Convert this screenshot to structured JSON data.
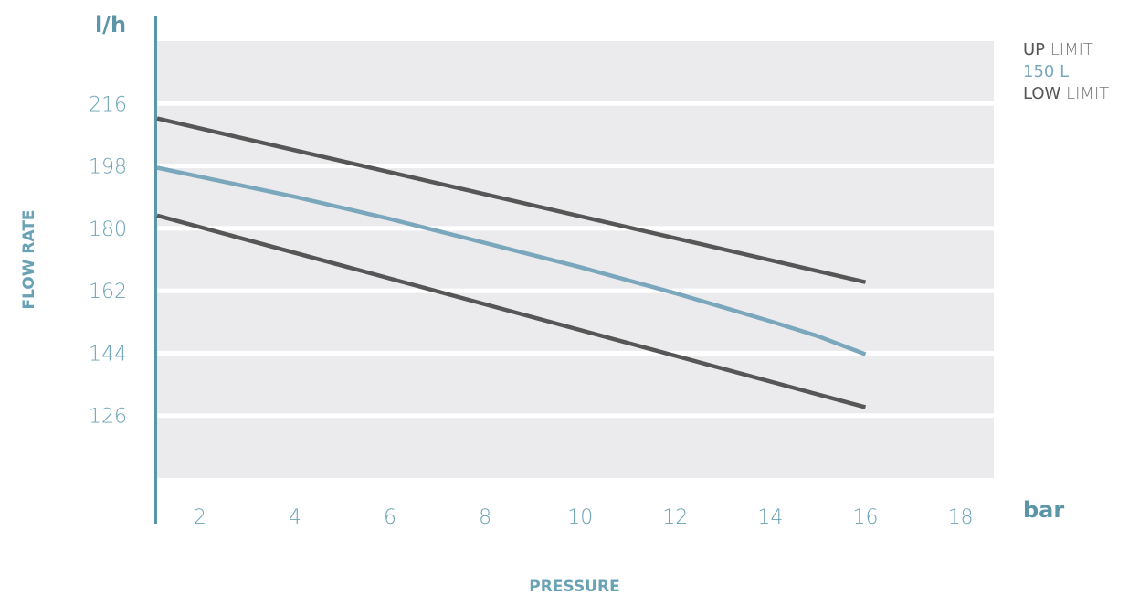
{
  "chart_data": {
    "type": "line",
    "title": "",
    "xlabel": "PRESSURE",
    "ylabel": "FLOW RATE",
    "x_unit": "bar",
    "y_unit": "l/h",
    "xlim": [
      1.1,
      18.7
    ],
    "ylim": [
      108,
      234
    ],
    "x_ticks": [
      "2",
      "4",
      "6",
      "8",
      "10",
      "12",
      "14",
      "16",
      "18"
    ],
    "y_ticks": [
      "216",
      "198",
      "180",
      "162",
      "144",
      "126"
    ],
    "grid": true,
    "legend_position": "top-right",
    "series": [
      {
        "name_main": "UP",
        "name_rest": " LIMIT",
        "color": "#565656",
        "name_main_color": "#565656",
        "name_rest_color": "#777777",
        "x": [
          1.1,
          16
        ],
        "y": [
          211.7,
          164.5
        ]
      },
      {
        "name_main": "150 L",
        "name_rest": "",
        "color": "#7aa7bc",
        "name_main_color": "#7aa7bc",
        "name_rest_color": "#7aa7bc",
        "x": [
          1.1,
          4,
          6,
          8,
          10,
          12,
          14,
          15,
          16
        ],
        "y": [
          197.5,
          189.1,
          182.7,
          175.8,
          168.8,
          161.3,
          153.2,
          148.9,
          143.7
        ]
      },
      {
        "name_main": "LOW",
        "name_rest": " LIMIT",
        "color": "#565656",
        "name_main_color": "#565656",
        "name_rest_color": "#777777",
        "x": [
          1.1,
          16
        ],
        "y": [
          183.7,
          128.4
        ]
      }
    ]
  },
  "colors": {
    "axis": "#5a95a8",
    "tick_text": "#6aa2b5",
    "unit_text": "#5a95a8",
    "axis_title": "#6aa2b5",
    "band": "#ebebed"
  }
}
